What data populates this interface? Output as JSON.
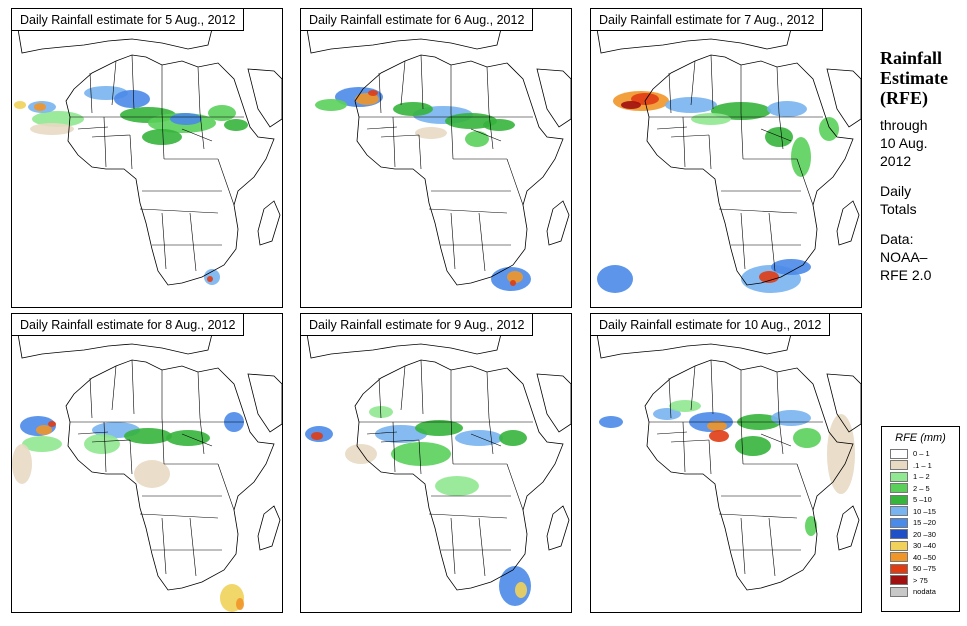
{
  "panels": [
    {
      "title": "Daily Rainfall estimate for  5 Aug., 2012"
    },
    {
      "title": "Daily Rainfall estimate for  6 Aug., 2012"
    },
    {
      "title": "Daily Rainfall estimate for  7 Aug., 2012"
    },
    {
      "title": "Daily Rainfall estimate for  8 Aug., 2012"
    },
    {
      "title": "Daily Rainfall estimate for  9 Aug., 2012"
    },
    {
      "title": "Daily Rainfall estimate for  10 Aug., 2012"
    }
  ],
  "sidebar": {
    "title_line1": "Rainfall",
    "title_line2": "Estimate",
    "title_line3": "(RFE)",
    "through": "through",
    "date_line1": "10 Aug.",
    "date_line2": "2012",
    "totals_line1": "Daily",
    "totals_line2": "Totals",
    "data_label": "Data:",
    "source_line1": "NOAA–",
    "source_line2": "RFE 2.0"
  },
  "legend": {
    "title": "RFE (mm)",
    "items": [
      {
        "label": "0 – 1",
        "color": "#ffffff"
      },
      {
        "label": ".1 – 1",
        "color": "#e8d9c3"
      },
      {
        "label": "1 – 2",
        "color": "#90e890"
      },
      {
        "label": "2 – 5",
        "color": "#5ad05a"
      },
      {
        "label": "5 –10",
        "color": "#36b43c"
      },
      {
        "label": "10 –15",
        "color": "#78b4f0"
      },
      {
        "label": "15 –20",
        "color": "#4a8ae8"
      },
      {
        "label": "20 –30",
        "color": "#2050c8"
      },
      {
        "label": "30 –40",
        "color": "#f0d25a"
      },
      {
        "label": "40 –50",
        "color": "#f09628"
      },
      {
        "label": "50 –75",
        "color": "#e03c14"
      },
      {
        "label": "> 75",
        "color": "#a01010"
      },
      {
        "label": "nodata",
        "color": "#c8c8c8"
      }
    ]
  }
}
